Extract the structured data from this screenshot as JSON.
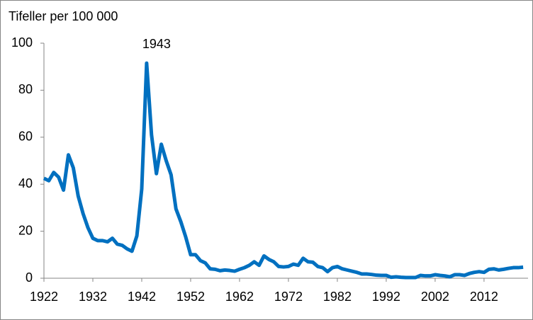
{
  "chart_data": {
    "type": "line",
    "title": "Tifeller per 100 000",
    "annotation": "1943",
    "x": [
      1922,
      1923,
      1924,
      1925,
      1926,
      1927,
      1928,
      1929,
      1930,
      1931,
      1932,
      1933,
      1934,
      1935,
      1936,
      1937,
      1938,
      1939,
      1940,
      1941,
      1942,
      1943,
      1944,
      1945,
      1946,
      1947,
      1948,
      1949,
      1950,
      1951,
      1952,
      1953,
      1954,
      1955,
      1956,
      1957,
      1958,
      1959,
      1960,
      1961,
      1962,
      1963,
      1964,
      1965,
      1966,
      1967,
      1968,
      1969,
      1970,
      1971,
      1972,
      1973,
      1974,
      1975,
      1976,
      1977,
      1978,
      1979,
      1980,
      1981,
      1982,
      1983,
      1984,
      1985,
      1986,
      1987,
      1988,
      1989,
      1990,
      1991,
      1992,
      1993,
      1994,
      1995,
      1996,
      1997,
      1998,
      1999,
      2000,
      2001,
      2002,
      2003,
      2004,
      2005,
      2006,
      2007,
      2008,
      2009,
      2010,
      2011,
      2012,
      2013,
      2014,
      2015,
      2016,
      2017,
      2018,
      2019,
      2020
    ],
    "series": [
      {
        "color": "#0070c0",
        "values": [
          42.5,
          41.5,
          45,
          43,
          37.5,
          52.5,
          47,
          35,
          27.5,
          21.5,
          17,
          16,
          16,
          15.5,
          17,
          14.5,
          14,
          12.5,
          11.5,
          18,
          38,
          91.5,
          61,
          44.5,
          57,
          50,
          44,
          29.5,
          24,
          17.5,
          10,
          10,
          7.5,
          6.5,
          4,
          3.8,
          3.2,
          3.5,
          3.3,
          3,
          3.8,
          4.5,
          5.5,
          7,
          5.5,
          9.5,
          8,
          7,
          5,
          4.8,
          5,
          6,
          5.5,
          8.5,
          7,
          6.8,
          5,
          4.5,
          2.8,
          4.5,
          5,
          4,
          3.5,
          3,
          2.5,
          1.8,
          1.8,
          1.6,
          1.3,
          1.2,
          1.2,
          0.4,
          0.6,
          0.4,
          0.3,
          0.3,
          0.3,
          1.2,
          1,
          1,
          1.5,
          1.2,
          1,
          0.6,
          1.5,
          1.5,
          1.2,
          2,
          2.5,
          2.8,
          2.5,
          3.8,
          4,
          3.5,
          3.8,
          4.2,
          4.5,
          4.5,
          4.7
        ]
      }
    ],
    "xlim": [
      1922,
      2021
    ],
    "xticks": [
      1922,
      1932,
      1942,
      1952,
      1962,
      1972,
      1982,
      1992,
      2002,
      2012
    ],
    "ylim": [
      0,
      100
    ],
    "yticks": [
      0,
      20,
      40,
      60,
      80,
      100
    ],
    "grid": false
  }
}
